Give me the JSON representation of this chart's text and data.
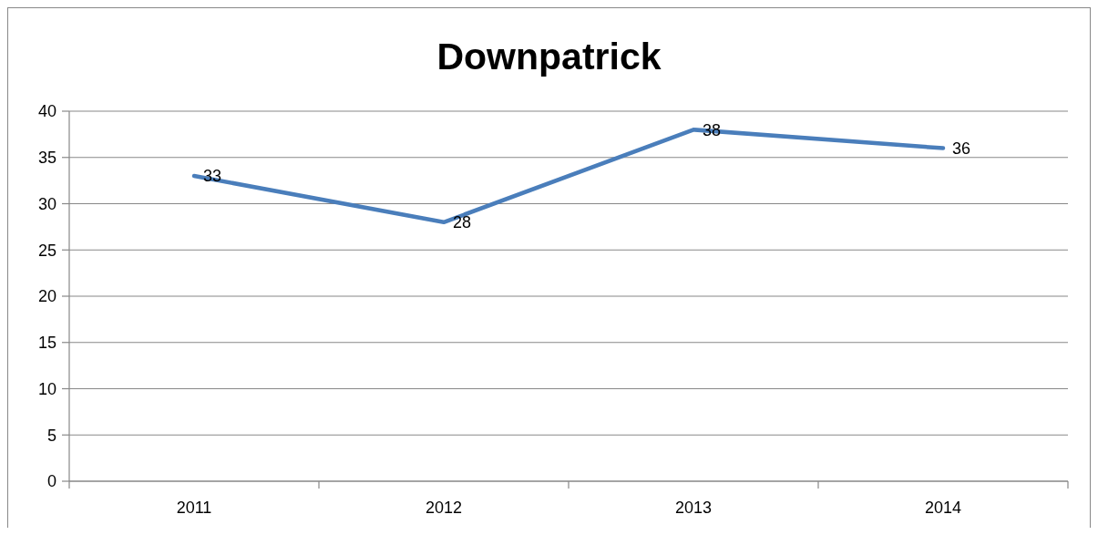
{
  "chart_data": {
    "type": "line",
    "title": "Downpatrick",
    "categories": [
      "2011",
      "2012",
      "2013",
      "2014"
    ],
    "series": [
      {
        "color": "#4a7ebb",
        "values": [
          33,
          28,
          38,
          36
        ]
      }
    ],
    "ylim": [
      0,
      40
    ],
    "yticks": [
      0,
      5,
      10,
      15,
      20,
      25,
      30,
      35,
      40
    ],
    "grid": "y",
    "data_labels": true,
    "marker": "none",
    "line_style": "solid"
  }
}
